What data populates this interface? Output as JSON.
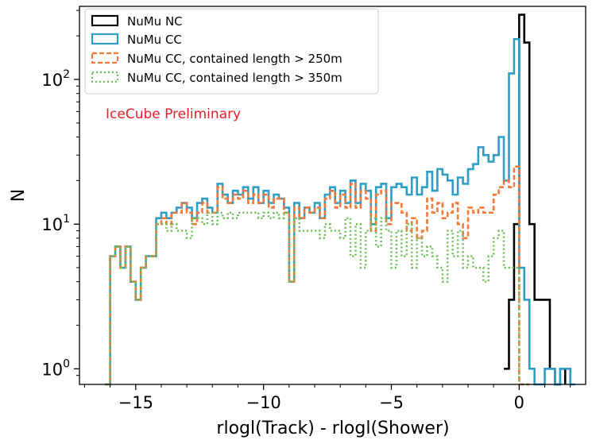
{
  "chart_data": {
    "type": "step-histogram",
    "xlabel": "rlogl(Track) - rlogl(Shower)",
    "ylabel": "N",
    "yscale": "log",
    "xlim": [
      -17.2,
      2.6
    ],
    "ylim": [
      0.78,
      320
    ],
    "x_ticks": [
      -15,
      -10,
      -5,
      0
    ],
    "x_tick_labels": [
      "−15",
      "−10",
      "−5",
      "0"
    ],
    "y_ticks": [
      {
        "value": 1,
        "base": "10",
        "exp": "0"
      },
      {
        "value": 10,
        "base": "10",
        "exp": "1"
      },
      {
        "value": 100,
        "base": "10",
        "exp": "2"
      }
    ],
    "grid": false,
    "legend_position": "top-left",
    "annotation": {
      "text": "IceCube Preliminary",
      "color": "#e8202a"
    },
    "series": [
      {
        "name": "NuMu NC",
        "color": "#000000",
        "style": "solid",
        "x": [
          -0.6,
          -0.4,
          -0.2,
          0.0,
          0.2,
          0.4,
          0.6,
          1.2,
          1.4,
          1.6
        ],
        "y": [
          1.0,
          3.0,
          10.0,
          280.0,
          180.0,
          10.0,
          3.0,
          1.0,
          0.78,
          1.0
        ]
      },
      {
        "name": "NuMu CC",
        "color": "#2f9ec4",
        "style": "solid",
        "x": [
          -16.2,
          -16.0,
          -15.8,
          -15.6,
          -15.4,
          -15.2,
          -15.0,
          -14.8,
          -14.6,
          -14.4,
          -14.2,
          -14.0,
          -13.8,
          -13.6,
          -13.4,
          -13.2,
          -13.0,
          -12.8,
          -12.6,
          -12.4,
          -12.2,
          -12.0,
          -11.8,
          -11.6,
          -11.4,
          -11.2,
          -11.0,
          -10.8,
          -10.6,
          -10.4,
          -10.2,
          -10.0,
          -9.8,
          -9.6,
          -9.4,
          -9.2,
          -9.0,
          -8.8,
          -8.6,
          -8.4,
          -8.2,
          -8.0,
          -7.8,
          -7.6,
          -7.4,
          -7.2,
          -7.0,
          -6.8,
          -6.6,
          -6.4,
          -6.2,
          -6.0,
          -5.8,
          -5.6,
          -5.4,
          -5.2,
          -5.0,
          -4.8,
          -4.6,
          -4.4,
          -4.2,
          -4.0,
          -3.8,
          -3.6,
          -3.4,
          -3.2,
          -3.0,
          -2.8,
          -2.6,
          -2.4,
          -2.2,
          -2.0,
          -1.8,
          -1.6,
          -1.4,
          -1.2,
          -1.0,
          -0.8,
          -0.6,
          -0.4,
          -0.2,
          0.0,
          0.2,
          0.4,
          0.6,
          0.8,
          1.0,
          1.2,
          1.4,
          1.6,
          1.8,
          2.0
        ],
        "y": [
          0.78,
          6,
          7,
          5,
          7,
          4,
          3,
          5,
          6,
          6,
          11,
          12,
          11,
          12,
          13,
          14,
          13,
          11,
          14,
          15,
          13,
          12,
          19,
          16,
          14,
          17,
          16,
          18,
          15,
          18,
          14,
          17,
          14,
          16,
          15,
          13,
          4,
          14,
          11,
          13,
          12,
          14,
          11,
          16,
          18,
          14,
          17,
          14,
          20,
          14,
          19,
          17,
          10,
          18,
          19,
          11,
          18,
          19,
          18,
          16,
          21,
          16,
          18,
          23,
          17,
          24,
          22,
          20,
          16,
          21,
          19,
          24,
          26,
          34,
          30,
          27,
          30,
          40,
          20,
          110,
          190,
          5,
          3,
          1,
          0.78,
          0.78,
          1,
          1,
          0.78,
          1,
          1,
          0.78
        ]
      },
      {
        "name": "NuMu CC, contained length > 250m",
        "color": "#f3793b",
        "style": "dashed",
        "x": [
          -16.2,
          -16.0,
          -15.8,
          -15.6,
          -15.4,
          -15.2,
          -15.0,
          -14.8,
          -14.6,
          -14.4,
          -14.2,
          -14.0,
          -13.8,
          -13.6,
          -13.4,
          -13.2,
          -13.0,
          -12.8,
          -12.6,
          -12.4,
          -12.2,
          -12.0,
          -11.8,
          -11.6,
          -11.4,
          -11.2,
          -11.0,
          -10.8,
          -10.6,
          -10.4,
          -10.2,
          -10.0,
          -9.8,
          -9.6,
          -9.4,
          -9.2,
          -9.0,
          -8.8,
          -8.6,
          -8.4,
          -8.2,
          -8.0,
          -7.8,
          -7.6,
          -7.4,
          -7.2,
          -7.0,
          -6.8,
          -6.6,
          -6.4,
          -6.2,
          -6.0,
          -5.8,
          -5.6,
          -5.4,
          -5.2,
          -5.0,
          -4.8,
          -4.6,
          -4.4,
          -4.2,
          -4.0,
          -3.8,
          -3.6,
          -3.4,
          -3.2,
          -3.0,
          -2.8,
          -2.6,
          -2.4,
          -2.2,
          -2.0,
          -1.8,
          -1.6,
          -1.4,
          -1.2,
          -1.0,
          -0.8,
          -0.6,
          -0.4,
          -0.2,
          0.0,
          0.2
        ],
        "y": [
          0.78,
          6,
          7,
          5,
          7,
          4,
          3,
          5,
          6,
          6,
          10,
          11,
          10,
          12,
          12,
          14,
          12,
          10,
          12,
          14,
          12,
          12,
          18,
          15,
          14,
          16,
          15,
          17,
          14,
          16,
          14,
          16,
          13,
          15,
          15,
          12,
          4,
          13,
          11,
          13,
          12,
          13,
          11,
          15,
          17,
          13,
          16,
          13,
          19,
          13,
          17,
          15,
          9,
          16,
          17,
          10,
          14,
          14,
          12,
          9,
          11,
          8,
          9,
          15,
          12,
          14,
          11,
          12,
          14,
          10,
          8,
          13,
          12,
          13,
          12,
          12,
          16,
          18,
          20,
          18,
          25,
          0.78,
          0.78
        ]
      },
      {
        "name": "NuMu CC, contained length > 350m",
        "color": "#6fbe5a",
        "style": "dotted",
        "x": [
          -16.2,
          -16.0,
          -15.8,
          -15.6,
          -15.4,
          -15.2,
          -15.0,
          -14.8,
          -14.6,
          -14.4,
          -14.2,
          -14.0,
          -13.8,
          -13.6,
          -13.4,
          -13.2,
          -13.0,
          -12.8,
          -12.6,
          -12.4,
          -12.2,
          -12.0,
          -11.8,
          -11.6,
          -11.4,
          -11.2,
          -11.0,
          -10.8,
          -10.6,
          -10.4,
          -10.2,
          -10.0,
          -9.8,
          -9.6,
          -9.4,
          -9.2,
          -9.0,
          -8.8,
          -8.6,
          -8.4,
          -8.2,
          -8.0,
          -7.8,
          -7.6,
          -7.4,
          -7.2,
          -7.0,
          -6.8,
          -6.6,
          -6.4,
          -6.2,
          -6.0,
          -5.8,
          -5.6,
          -5.4,
          -5.2,
          -5.0,
          -4.8,
          -4.6,
          -4.4,
          -4.2,
          -4.0,
          -3.8,
          -3.6,
          -3.4,
          -3.2,
          -3.0,
          -2.8,
          -2.6,
          -2.4,
          -2.2,
          -2.0,
          -1.8,
          -1.6,
          -1.4,
          -1.2,
          -1.0,
          -0.8,
          -0.6,
          -0.4,
          -0.2,
          0.0,
          0.2
        ],
        "y": [
          0.78,
          6,
          7,
          5,
          7,
          4,
          3,
          5,
          6,
          6,
          10,
          10,
          9,
          10,
          9,
          9,
          8,
          11,
          11,
          10,
          12,
          10,
          12,
          11,
          12,
          11,
          12,
          12,
          12,
          12,
          11,
          12,
          11,
          12,
          11,
          12,
          4,
          11,
          9,
          9,
          9,
          9,
          8,
          10,
          9,
          9,
          8,
          11,
          6,
          10,
          5,
          9,
          11,
          7,
          11,
          9,
          5,
          9,
          6,
          10,
          5,
          8,
          6,
          7,
          6,
          5,
          4,
          9,
          6,
          9,
          5,
          6,
          5,
          5,
          4,
          6,
          8,
          9,
          5,
          5,
          5,
          0.78,
          0.78
        ]
      }
    ]
  }
}
